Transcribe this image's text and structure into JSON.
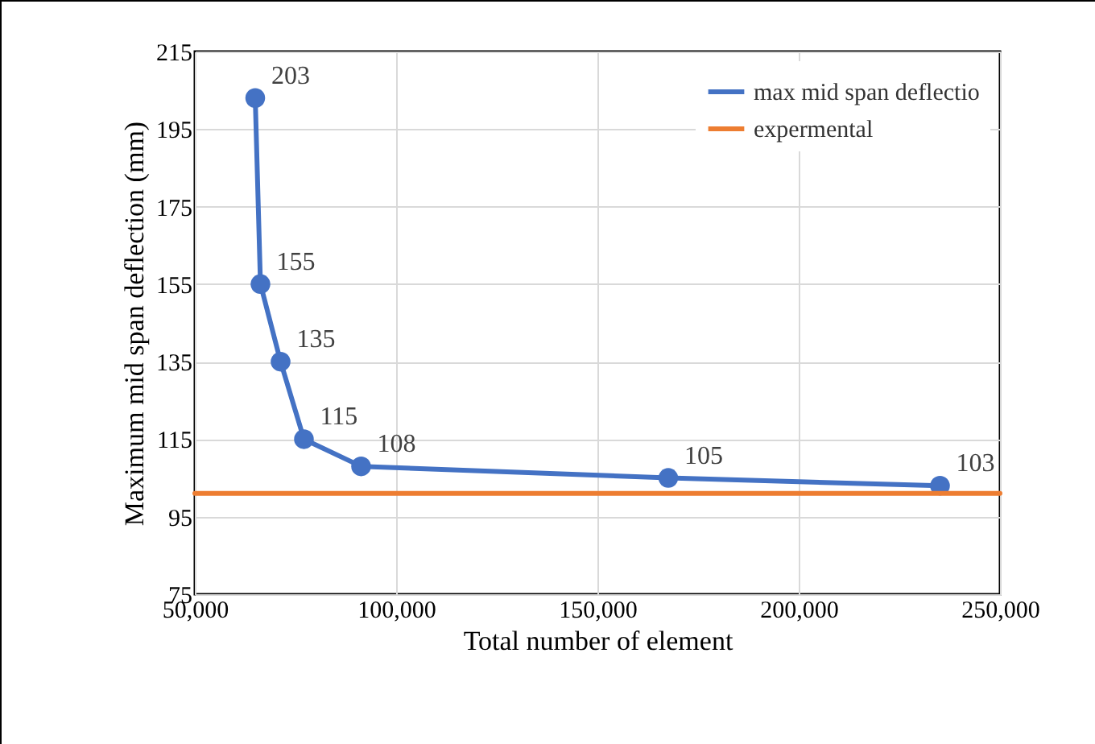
{
  "chart_data": {
    "type": "line",
    "xlabel": "Total number of element",
    "ylabel": "Maximum mid span deflection (mm)",
    "xlim": [
      50000,
      250000
    ],
    "xticks": [
      {
        "value": 50000,
        "label": "50,000"
      },
      {
        "value": 100000,
        "label": "100,000"
      },
      {
        "value": 150000,
        "label": "150,000"
      },
      {
        "value": 200000,
        "label": "200,000"
      },
      {
        "value": 250000,
        "label": "250,000"
      }
    ],
    "ylim": [
      75,
      215
    ],
    "yticks": [
      75,
      95,
      115,
      135,
      155,
      175,
      195,
      215
    ],
    "grid": true,
    "legend": "top right",
    "series": [
      {
        "name": "max mid span deflectio",
        "color": "#4472c4",
        "marker": "circle",
        "x": [
          65000,
          66300,
          71300,
          77100,
          91300,
          167600,
          235100
        ],
        "values": [
          203,
          155,
          135,
          115,
          108,
          105,
          103
        ],
        "value_labels": [
          "203",
          "155",
          "135",
          "115",
          "108",
          "105",
          "103"
        ]
      },
      {
        "name": "expermental",
        "color": "#ed7d31",
        "marker": "none",
        "x": [
          50000,
          250000
        ],
        "values": [
          101,
          101
        ]
      }
    ]
  }
}
